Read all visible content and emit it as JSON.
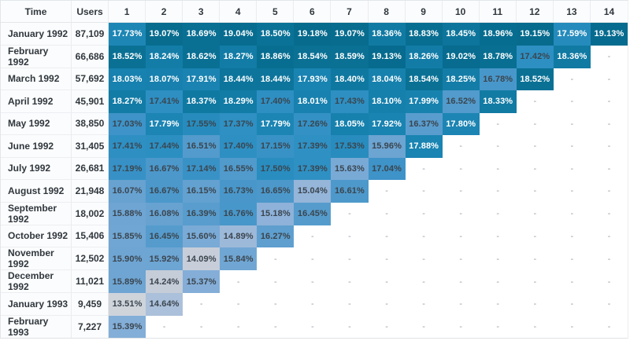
{
  "chart_data": {
    "type": "heatmap",
    "columns": [
      "Time",
      "Users",
      "1",
      "2",
      "3",
      "4",
      "5",
      "6",
      "7",
      "8",
      "9",
      "10",
      "11",
      "12",
      "13",
      "14"
    ],
    "value_suffix": "%",
    "empty_placeholder": "-",
    "rows": [
      {
        "time": "January 1992",
        "users": "87,109",
        "values": [
          17.73,
          19.07,
          18.69,
          19.04,
          18.5,
          19.18,
          19.07,
          18.36,
          18.83,
          18.45,
          18.96,
          19.15,
          17.59,
          19.13
        ]
      },
      {
        "time": "February 1992",
        "users": "66,686",
        "values": [
          18.52,
          18.24,
          18.62,
          18.27,
          18.86,
          18.54,
          18.59,
          19.13,
          18.26,
          19.02,
          18.78,
          17.42,
          18.36
        ]
      },
      {
        "time": "March 1992",
        "users": "57,692",
        "values": [
          18.03,
          18.07,
          17.91,
          18.44,
          18.44,
          17.93,
          18.4,
          18.04,
          18.54,
          18.25,
          16.78,
          18.52
        ]
      },
      {
        "time": "April 1992",
        "users": "45,901",
        "values": [
          18.27,
          17.41,
          18.37,
          18.29,
          17.4,
          18.01,
          17.43,
          18.1,
          17.99,
          16.52,
          18.33
        ]
      },
      {
        "time": "May 1992",
        "users": "38,850",
        "values": [
          17.03,
          17.79,
          17.55,
          17.37,
          17.79,
          17.26,
          18.05,
          17.92,
          16.37,
          17.8
        ]
      },
      {
        "time": "June 1992",
        "users": "31,405",
        "values": [
          17.41,
          17.44,
          16.51,
          17.4,
          17.15,
          17.39,
          17.53,
          15.96,
          17.88
        ]
      },
      {
        "time": "July 1992",
        "users": "26,681",
        "values": [
          17.19,
          16.67,
          17.14,
          16.55,
          17.5,
          17.39,
          15.63,
          17.04
        ]
      },
      {
        "time": "August 1992",
        "users": "21,948",
        "values": [
          16.07,
          16.67,
          16.15,
          16.73,
          16.65,
          15.04,
          16.61
        ]
      },
      {
        "time": "September 1992",
        "users": "18,002",
        "values": [
          15.88,
          16.08,
          16.39,
          16.76,
          15.18,
          16.45
        ]
      },
      {
        "time": "October 1992",
        "users": "15,406",
        "values": [
          15.85,
          16.45,
          15.6,
          14.89,
          16.27
        ]
      },
      {
        "time": "November 1992",
        "users": "12,502",
        "values": [
          15.9,
          15.92,
          14.09,
          15.84
        ]
      },
      {
        "time": "December 1992",
        "users": "11,021",
        "values": [
          15.89,
          14.24,
          15.37
        ]
      },
      {
        "time": "January 1993",
        "users": "9,459",
        "values": [
          13.51,
          14.64
        ]
      },
      {
        "time": "February 1993",
        "users": "7,227",
        "values": [
          15.39
        ]
      }
    ],
    "period_count": 14,
    "heatmap_scale": {
      "color_stops": [
        [
          13.51,
          "#cfd4db"
        ],
        [
          14.24,
          "#c5cdd8"
        ],
        [
          14.64,
          "#abc0da"
        ],
        [
          15.04,
          "#95b5d9"
        ],
        [
          15.39,
          "#83aed8"
        ],
        [
          16.07,
          "#67a2d1"
        ],
        [
          16.61,
          "#4e99cb"
        ],
        [
          17.03,
          "#3e93c8"
        ],
        [
          17.45,
          "#2c8fc2"
        ],
        [
          17.73,
          "#1d86b5"
        ],
        [
          18.1,
          "#1680ad"
        ],
        [
          18.36,
          "#107aa3"
        ],
        [
          18.52,
          "#0a7195"
        ],
        [
          19.18,
          "#066b8d"
        ]
      ],
      "white_text_threshold": 17.57,
      "cell_text_dark": "#3b454e",
      "cell_text_light": "#ffffff",
      "empty_text_color": "#9aa1a8"
    }
  }
}
